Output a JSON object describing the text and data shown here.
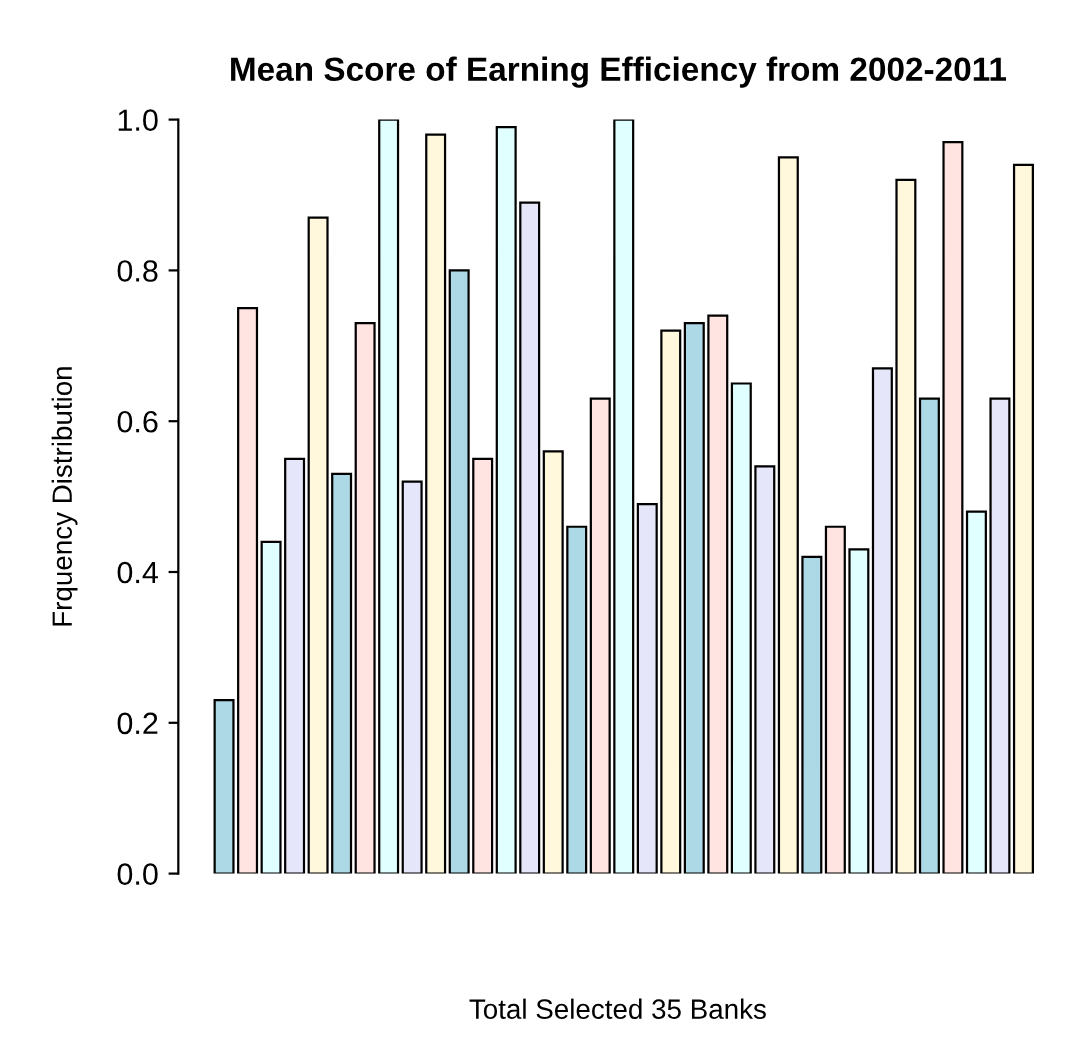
{
  "chart_data": {
    "type": "bar",
    "title": "Mean Score of Earning Efficiency from 2002-2011",
    "xlabel": "Total Selected 35 Banks",
    "ylabel": "Frquency Distribution",
    "categories": [
      null,
      null,
      null,
      null,
      null,
      null,
      null,
      null,
      null,
      null,
      null,
      null,
      null,
      null,
      null,
      null,
      null,
      null,
      null,
      null,
      null,
      null,
      null,
      null,
      null,
      null,
      null,
      null,
      null,
      null,
      null,
      null,
      null,
      null,
      null
    ],
    "values": [
      0.23,
      0.75,
      0.44,
      0.55,
      0.87,
      0.53,
      0.73,
      1.0,
      0.52,
      0.98,
      0.8,
      0.55,
      0.99,
      0.89,
      0.56,
      0.46,
      0.63,
      1.0,
      0.49,
      0.72,
      0.73,
      0.74,
      0.65,
      0.54,
      0.95,
      0.42,
      0.46,
      0.43,
      0.67,
      0.92,
      0.63,
      0.97,
      0.48,
      0.63,
      0.94
    ],
    "colors": [
      "#add8e6",
      "#ffe4e1",
      "#e0ffff",
      "#e6e6fa",
      "#fff8dc",
      "#add8e6",
      "#ffe4e1",
      "#e0ffff",
      "#e6e6fa",
      "#fff8dc",
      "#add8e6",
      "#ffe4e1",
      "#e0ffff",
      "#e6e6fa",
      "#fff8dc",
      "#add8e6",
      "#ffe4e1",
      "#e0ffff",
      "#e6e6fa",
      "#fff8dc",
      "#add8e6",
      "#ffe4e1",
      "#e0ffff",
      "#e6e6fa",
      "#fff8dc",
      "#add8e6",
      "#ffe4e1",
      "#e0ffff",
      "#e6e6fa",
      "#fff8dc",
      "#add8e6",
      "#ffe4e1",
      "#e0ffff",
      "#e6e6fa",
      "#fff8dc"
    ],
    "ylim": [
      0,
      1.0
    ],
    "yticks": [
      {
        "value": 0,
        "label": "0.0"
      },
      0.2,
      0.4,
      0.6,
      0.8,
      {
        "value": 1,
        "label": "1.0"
      }
    ],
    "tick_labels": "y",
    "grid": false,
    "legend": false
  }
}
